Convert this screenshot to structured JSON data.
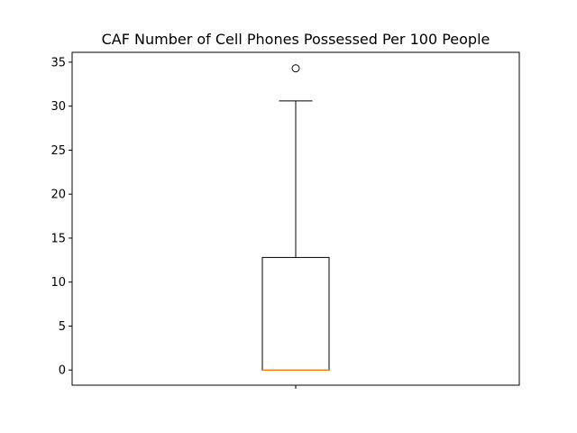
{
  "chart_data": {
    "type": "box",
    "title": "CAF Number of Cell Phones Possessed Per 100 People",
    "xlabel": "",
    "ylabel": "",
    "ylim": [
      -1.72,
      36.12
    ],
    "yticks": [
      0,
      5,
      10,
      15,
      20,
      25,
      30,
      35
    ],
    "categories": [
      ""
    ],
    "series": [
      {
        "whisker_low": 0,
        "q1": 0,
        "median": 0,
        "q3": 12.8,
        "whisker_high": 30.6,
        "outliers": [
          34.3
        ]
      }
    ],
    "grid": false,
    "colors": {
      "box": "#000000",
      "median": "#ff7f0e",
      "outlier": "#000000"
    }
  }
}
